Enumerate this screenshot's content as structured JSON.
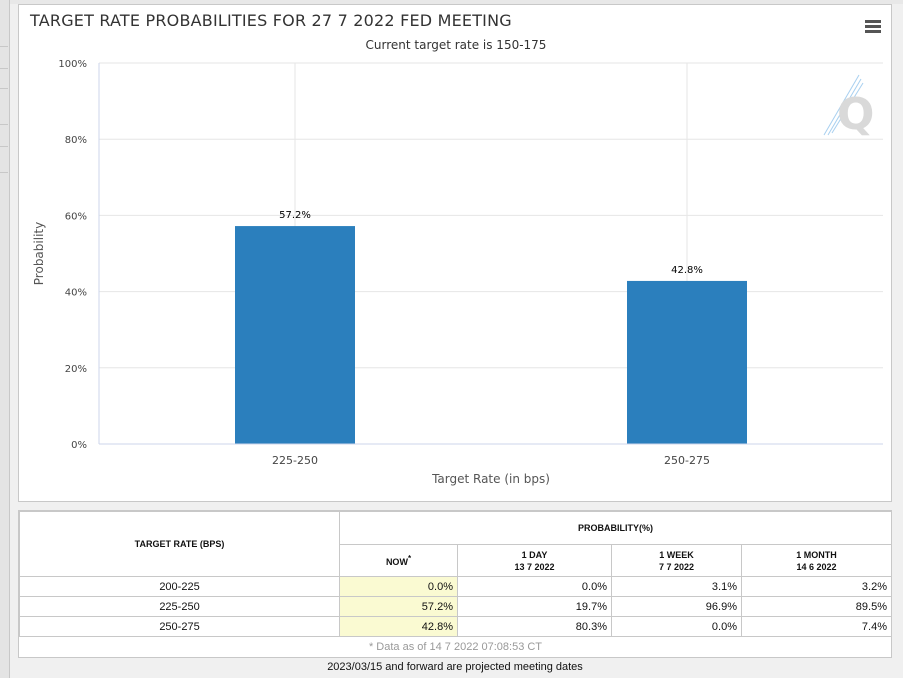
{
  "chart_data": {
    "type": "bar",
    "title": "TARGET RATE PROBABILITIES FOR 27 7 2022 FED MEETING",
    "subtitle": "Current target rate is 150-175",
    "categories": [
      "225-250",
      "250-275"
    ],
    "values": [
      57.2,
      42.8
    ],
    "data_labels": [
      "57.2%",
      "42.8%"
    ],
    "xlabel": "Target Rate (in bps)",
    "ylabel": "Probability",
    "ylim": [
      0,
      100
    ],
    "yticks": [
      "0%",
      "20%",
      "40%",
      "60%",
      "80%",
      "100%"
    ],
    "grid": true,
    "bar_color": "#2b7fbd"
  },
  "watermark_logo": "Q",
  "menu_icon": "hamburger-menu-icon",
  "table": {
    "rate_header": "TARGET RATE (BPS)",
    "prob_header": "PROBABILITY(%)",
    "now_label": "NOW",
    "now_mark": "*",
    "col_day": "1 DAY",
    "col_day_date": "13 7 2022",
    "col_week": "1 WEEK",
    "col_week_date": "7 7 2022",
    "col_month": "1 MONTH",
    "col_month_date": "14 6 2022",
    "rows": [
      {
        "rate": "200-225",
        "now": "0.0%",
        "day": "0.0%",
        "week": "3.1%",
        "month": "3.2%"
      },
      {
        "rate": "225-250",
        "now": "57.2%",
        "day": "19.7%",
        "week": "96.9%",
        "month": "89.5%"
      },
      {
        "rate": "250-275",
        "now": "42.8%",
        "day": "80.3%",
        "week": "0.0%",
        "month": "7.4%"
      }
    ],
    "footnote": "* Data as of 14 7 2022 07:08:53 CT"
  },
  "note": "2023/03/15 and forward are projected meeting dates"
}
